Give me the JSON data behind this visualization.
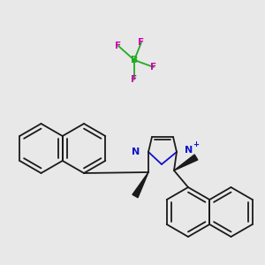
{
  "bg_color": "#e8e8e8",
  "line_color": "#1a1a1a",
  "N_color": "#1010cc",
  "F_color": "#cc00aa",
  "B_color": "#22aa22",
  "lw": 1.3,
  "fig_w": 3.0,
  "fig_h": 3.0,
  "dpi": 100,
  "xlim": [
    0,
    300
  ],
  "ylim": [
    0,
    300
  ]
}
